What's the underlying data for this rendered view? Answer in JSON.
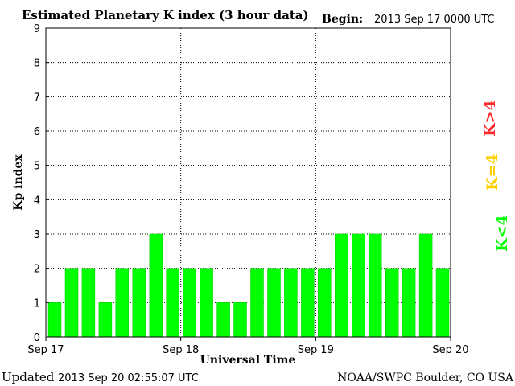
{
  "header": {
    "title": "Estimated Planetary K index (3 hour data)",
    "begin_label": "Begin:",
    "begin_value": "2013 Sep 17 0000 UTC"
  },
  "footer": {
    "updated_label": "Updated",
    "updated_value": "2013 Sep 20 02:55:07 UTC",
    "source": "NOAA/SWPC Boulder, CO USA"
  },
  "legend": {
    "items": [
      {
        "label": "K>4",
        "color": "#ff2a2a"
      },
      {
        "label": "K=4",
        "color": "#ffd000"
      },
      {
        "label": "K<4",
        "color": "#00ff00"
      }
    ]
  },
  "colors": {
    "bar_fill": "#00ff00",
    "bar_edge": "#00cc00"
  },
  "chart_data": {
    "type": "bar",
    "title": "Estimated Planetary K index (3 hour data)",
    "xlabel": "Universal Time",
    "ylabel": "Kp index",
    "ylim": [
      0,
      9
    ],
    "yticks": [
      "0",
      "1",
      "2",
      "3",
      "4",
      "5",
      "6",
      "7",
      "8",
      "9"
    ],
    "xticks": [
      "Sep 17",
      "Sep 18",
      "Sep 19",
      "Sep 20"
    ],
    "grid": true,
    "values": [
      1,
      2,
      2,
      1,
      2,
      2,
      3,
      2,
      2,
      2,
      1,
      1,
      2,
      2,
      2,
      2,
      2,
      3,
      3,
      3,
      2,
      2,
      3,
      2
    ]
  }
}
